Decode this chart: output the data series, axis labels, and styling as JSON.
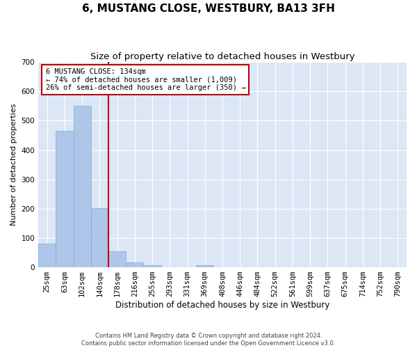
{
  "title": "6, MUSTANG CLOSE, WESTBURY, BA13 3FH",
  "subtitle": "Size of property relative to detached houses in Westbury",
  "xlabel": "Distribution of detached houses by size in Westbury",
  "ylabel": "Number of detached properties",
  "categories": [
    "25sqm",
    "63sqm",
    "102sqm",
    "140sqm",
    "178sqm",
    "216sqm",
    "255sqm",
    "293sqm",
    "331sqm",
    "369sqm",
    "408sqm",
    "446sqm",
    "484sqm",
    "522sqm",
    "561sqm",
    "599sqm",
    "637sqm",
    "675sqm",
    "714sqm",
    "752sqm",
    "790sqm"
  ],
  "values": [
    80,
    465,
    552,
    203,
    55,
    16,
    8,
    0,
    0,
    8,
    0,
    0,
    0,
    0,
    0,
    0,
    0,
    0,
    0,
    0,
    0
  ],
  "bar_color": "#aec6e8",
  "bar_edge_color": "#7badd4",
  "highlight_color": "#c00000",
  "annotation_box_text": "6 MUSTANG CLOSE: 134sqm\n← 74% of detached houses are smaller (1,009)\n26% of semi-detached houses are larger (350) →",
  "property_line_x": 3.5,
  "ylim": [
    0,
    700
  ],
  "yticks": [
    0,
    100,
    200,
    300,
    400,
    500,
    600,
    700
  ],
  "background_color": "#dce6f5",
  "grid_color": "#ffffff",
  "footer_text": "Contains HM Land Registry data © Crown copyright and database right 2024.\nContains public sector information licensed under the Open Government Licence v3.0.",
  "title_fontsize": 11,
  "subtitle_fontsize": 9.5,
  "xlabel_fontsize": 8.5,
  "ylabel_fontsize": 8,
  "tick_fontsize": 7.5,
  "annotation_fontsize": 7.5,
  "footer_fontsize": 6
}
